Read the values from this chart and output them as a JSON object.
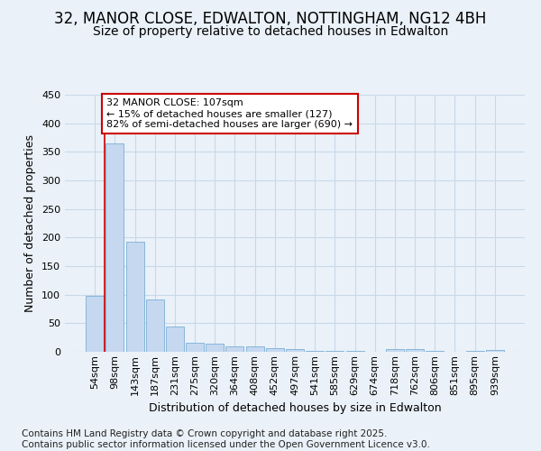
{
  "title": "32, MANOR CLOSE, EDWALTON, NOTTINGHAM, NG12 4BH",
  "subtitle": "Size of property relative to detached houses in Edwalton",
  "xlabel": "Distribution of detached houses by size in Edwalton",
  "ylabel": "Number of detached properties",
  "categories": [
    "54sqm",
    "98sqm",
    "143sqm",
    "187sqm",
    "231sqm",
    "275sqm",
    "320sqm",
    "364sqm",
    "408sqm",
    "452sqm",
    "497sqm",
    "541sqm",
    "585sqm",
    "629sqm",
    "674sqm",
    "718sqm",
    "762sqm",
    "806sqm",
    "851sqm",
    "895sqm",
    "939sqm"
  ],
  "values": [
    98,
    365,
    193,
    92,
    44,
    16,
    14,
    10,
    9,
    7,
    5,
    2,
    1,
    1,
    0,
    5,
    5,
    1,
    0,
    2,
    3
  ],
  "bar_color": "#c5d8f0",
  "bar_edge_color": "#7bafd4",
  "vline_x_index": 0.5,
  "vline_color": "#cc0000",
  "annotation_text": "32 MANOR CLOSE: 107sqm\n← 15% of detached houses are smaller (127)\n82% of semi-detached houses are larger (690) →",
  "annotation_box_facecolor": "#ffffff",
  "annotation_box_edgecolor": "#cc0000",
  "ylim": [
    0,
    450
  ],
  "yticks": [
    0,
    50,
    100,
    150,
    200,
    250,
    300,
    350,
    400,
    450
  ],
  "bg_color": "#eaf1f8",
  "plot_bg_color": "#eaf1f8",
  "grid_color": "#c8d8ea",
  "title_fontsize": 12,
  "subtitle_fontsize": 10,
  "axis_label_fontsize": 9,
  "tick_fontsize": 8,
  "annotation_fontsize": 8,
  "footer_fontsize": 7.5,
  "footer": "Contains HM Land Registry data © Crown copyright and database right 2025.\nContains public sector information licensed under the Open Government Licence v3.0."
}
